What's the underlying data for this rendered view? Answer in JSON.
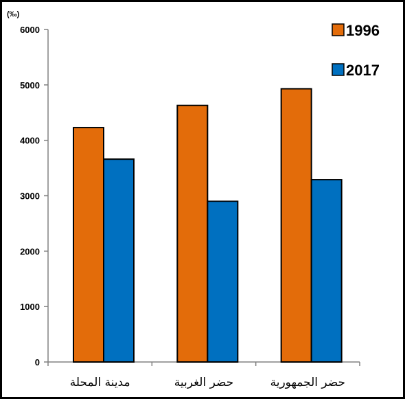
{
  "chart_data": {
    "type": "bar",
    "y_unit": "(‰)",
    "categories": [
      "مدينة المحلة",
      "حضر الغربية",
      "حضر الجمهورية"
    ],
    "series": [
      {
        "name": "1996",
        "values": [
          4230,
          4630,
          4930
        ],
        "color": "#E36C0A"
      },
      {
        "name": "2017",
        "values": [
          3660,
          2900,
          3290
        ],
        "color": "#0070C0"
      }
    ],
    "ylim": [
      0,
      6000
    ],
    "yticks": [
      0,
      1000,
      2000,
      3000,
      4000,
      5000,
      6000
    ],
    "grid": false,
    "legend_position": "top-right"
  }
}
